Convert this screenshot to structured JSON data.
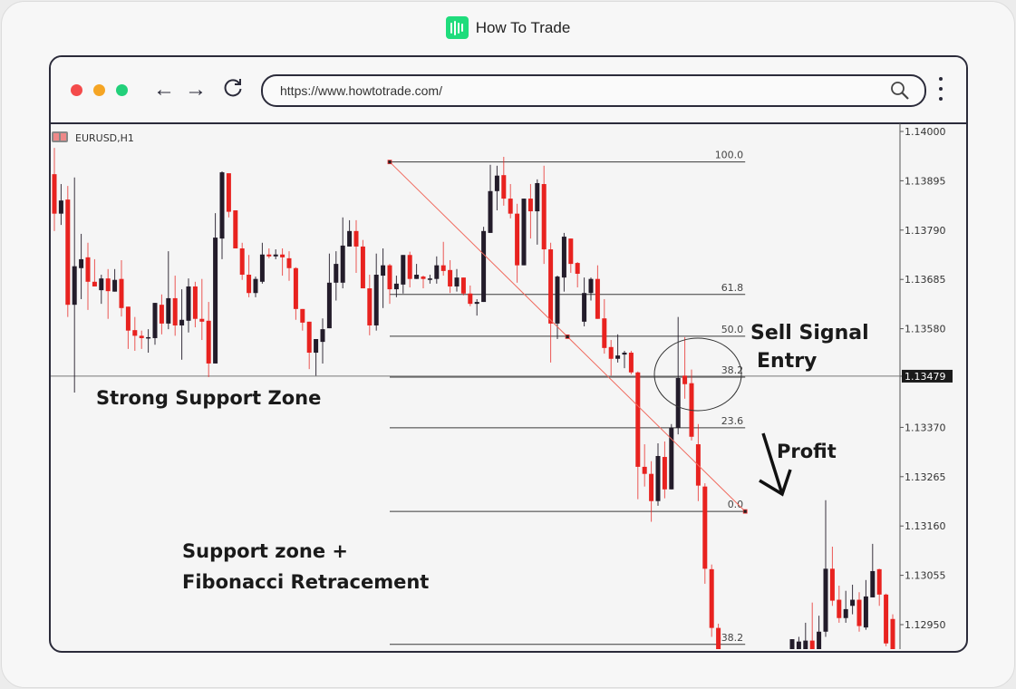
{
  "brand": {
    "name": "How To Trade",
    "logo_color": "#1fdc7c"
  },
  "browser": {
    "url": "https://www.howtotrade.com/",
    "window_dots": [
      "#f44b4b",
      "#f5a524",
      "#22d07a"
    ],
    "icons": [
      "back-arrow-icon",
      "forward-arrow-icon",
      "reload-icon",
      "search-icon",
      "kebab-menu-icon"
    ]
  },
  "chart_data": {
    "type": "candlestick",
    "symbol_label": "EURUSD,H1",
    "ylim": [
      1.1285,
      1.1402
    ],
    "y_ticks": [
      "1.14000",
      "1.13895",
      "1.13790",
      "1.13685",
      "1.13580",
      "1.13479",
      "1.13370",
      "1.13265",
      "1.13160",
      "1.13055",
      "1.12950"
    ],
    "current_price_label": "1.13479",
    "current_price": 1.13479,
    "colors": {
      "bearish": "#e8221f",
      "bullish": "#231c2a",
      "trendline": "#f06a5e",
      "level": "#3a3a3a"
    },
    "candle_fields": [
      "open",
      "high",
      "low",
      "close"
    ],
    "candles": [
      [
        1.13909,
        1.13965,
        1.13788,
        1.13825
      ],
      [
        1.13825,
        1.13888,
        1.13801,
        1.13853
      ],
      [
        1.13855,
        1.13884,
        1.13605,
        1.13631
      ],
      [
        1.13631,
        1.13902,
        1.13444,
        1.13713
      ],
      [
        1.13709,
        1.13782,
        1.13643,
        1.13728
      ],
      [
        1.13732,
        1.13763,
        1.1362,
        1.1368
      ],
      [
        1.1368,
        1.13728,
        1.1367,
        1.1367
      ],
      [
        1.13662,
        1.13695,
        1.13633,
        1.13687
      ],
      [
        1.13687,
        1.13707,
        1.13601,
        1.1366
      ],
      [
        1.13659,
        1.13707,
        1.13659,
        1.13684
      ],
      [
        1.13686,
        1.13726,
        1.13606,
        1.13624
      ],
      [
        1.13627,
        1.13627,
        1.13537,
        1.13576
      ],
      [
        1.13577,
        1.13605,
        1.13533,
        1.13565
      ],
      [
        1.13565,
        1.13576,
        1.13537,
        1.1356
      ],
      [
        1.1356,
        1.13579,
        1.13529,
        1.13562
      ],
      [
        1.1356,
        1.13635,
        1.13546,
        1.13635
      ],
      [
        1.13631,
        1.13653,
        1.13568,
        1.13591
      ],
      [
        1.13591,
        1.13745,
        1.13579,
        1.13645
      ],
      [
        1.13645,
        1.13693,
        1.13565,
        1.13587
      ],
      [
        1.13587,
        1.13664,
        1.13514,
        1.13599
      ],
      [
        1.13597,
        1.13687,
        1.13572,
        1.1367
      ],
      [
        1.1367,
        1.1368,
        1.13583,
        1.13601
      ],
      [
        1.13601,
        1.13686,
        1.13556,
        1.13595
      ],
      [
        1.13597,
        1.13637,
        1.13477,
        1.13506
      ],
      [
        1.13506,
        1.13826,
        1.13506,
        1.13774
      ],
      [
        1.13772,
        1.13915,
        1.13728,
        1.13913
      ],
      [
        1.13911,
        1.13911,
        1.13817,
        1.13829
      ],
      [
        1.13832,
        1.13832,
        1.13751,
        1.13751
      ],
      [
        1.13751,
        1.13763,
        1.13684,
        1.13695
      ],
      [
        1.13695,
        1.13737,
        1.13647,
        1.13656
      ],
      [
        1.13656,
        1.13691,
        1.13647,
        1.13686
      ],
      [
        1.1368,
        1.13763,
        1.13676,
        1.13738
      ],
      [
        1.13738,
        1.13751,
        1.1373,
        1.13734
      ],
      [
        1.13734,
        1.13749,
        1.13728,
        1.13738
      ],
      [
        1.13738,
        1.13751,
        1.13693,
        1.13732
      ],
      [
        1.1373,
        1.13745,
        1.13682,
        1.13709
      ],
      [
        1.13709,
        1.13711,
        1.13599,
        1.13622
      ],
      [
        1.13622,
        1.13622,
        1.13576,
        1.13593
      ],
      [
        1.13595,
        1.13595,
        1.13494,
        1.13529
      ],
      [
        1.13529,
        1.13558,
        1.1348,
        1.13558
      ],
      [
        1.13552,
        1.13602,
        1.13506,
        1.13579
      ],
      [
        1.13581,
        1.1374,
        1.13581,
        1.13678
      ],
      [
        1.13678,
        1.13745,
        1.1364,
        1.13718
      ],
      [
        1.13678,
        1.13817,
        1.13666,
        1.13757
      ],
      [
        1.13755,
        1.13811,
        1.13755,
        1.13788
      ],
      [
        1.13788,
        1.13811,
        1.13699,
        1.13755
      ],
      [
        1.13755,
        1.13769,
        1.13666,
        1.13666
      ],
      [
        1.13666,
        1.13695,
        1.13566,
        1.13587
      ],
      [
        1.13587,
        1.1374,
        1.13576,
        1.13695
      ],
      [
        1.13693,
        1.13751,
        1.13624,
        1.13715
      ],
      [
        1.13715,
        1.13718,
        1.13633,
        1.13664
      ],
      [
        1.13664,
        1.13693,
        1.13647,
        1.13676
      ],
      [
        1.13674,
        1.13737,
        1.13655,
        1.13737
      ],
      [
        1.13737,
        1.13744,
        1.13668,
        1.13686
      ],
      [
        1.13686,
        1.13718,
        1.13686,
        1.13695
      ],
      [
        1.13691,
        1.13693,
        1.13666,
        1.13686
      ],
      [
        1.13684,
        1.13695,
        1.13676,
        1.13687
      ],
      [
        1.13686,
        1.13734,
        1.13676,
        1.13715
      ],
      [
        1.13715,
        1.13765,
        1.13693,
        1.13703
      ],
      [
        1.13705,
        1.13726,
        1.13656,
        1.1367
      ],
      [
        1.1367,
        1.13707,
        1.13659,
        1.13689
      ],
      [
        1.13689,
        1.13689,
        1.13651,
        1.13655
      ],
      [
        1.13655,
        1.13672,
        1.13628,
        1.13633
      ],
      [
        1.13633,
        1.13643,
        1.13608,
        1.13637
      ],
      [
        1.13637,
        1.13797,
        1.13637,
        1.13788
      ],
      [
        1.13784,
        1.13929,
        1.13784,
        1.13873
      ],
      [
        1.13873,
        1.13927,
        1.13832,
        1.13906
      ],
      [
        1.13907,
        1.13946,
        1.13842,
        1.13857
      ],
      [
        1.13857,
        1.13888,
        1.13815,
        1.13825
      ],
      [
        1.13825,
        1.13846,
        1.13678,
        1.13715
      ],
      [
        1.13715,
        1.13857,
        1.13715,
        1.13857
      ],
      [
        1.13857,
        1.13888,
        1.13772,
        1.1383
      ],
      [
        1.1383,
        1.13898,
        1.13759,
        1.1389
      ],
      [
        1.13888,
        1.13927,
        1.13718,
        1.13749
      ],
      [
        1.13749,
        1.13763,
        1.13508,
        1.13591
      ],
      [
        1.13591,
        1.13693,
        1.13558,
        1.13691
      ],
      [
        1.13689,
        1.13784,
        1.13659,
        1.13776
      ],
      [
        1.13772,
        1.13772,
        1.13699,
        1.13718
      ],
      [
        1.1372,
        1.13722,
        1.13668,
        1.13697
      ],
      [
        1.13595,
        1.13689,
        1.13585,
        1.13656
      ],
      [
        1.13656,
        1.13689,
        1.1364,
        1.13686
      ],
      [
        1.13686,
        1.13715,
        1.13601,
        1.13601
      ],
      [
        1.13602,
        1.13643,
        1.13527,
        1.13539
      ],
      [
        1.13541,
        1.13556,
        1.1348,
        1.13516
      ],
      [
        1.13516,
        1.13568,
        1.13508,
        1.13523
      ],
      [
        1.13525,
        1.13533,
        1.13496,
        1.13529
      ],
      [
        1.13529,
        1.13533,
        1.13483,
        1.13487
      ],
      [
        1.13487,
        1.13489,
        1.13217,
        1.13286
      ],
      [
        1.13286,
        1.13334,
        1.13244,
        1.13271
      ],
      [
        1.13271,
        1.13298,
        1.13169,
        1.13213
      ],
      [
        1.13213,
        1.13336,
        1.13203,
        1.13309
      ],
      [
        1.13307,
        1.1334,
        1.13219,
        1.13238
      ],
      [
        1.13238,
        1.13377,
        1.13238,
        1.13369
      ],
      [
        1.13369,
        1.13605,
        1.13355,
        1.13475
      ],
      [
        1.1348,
        1.13562,
        1.13431,
        1.13462
      ],
      [
        1.13464,
        1.13493,
        1.13342,
        1.1335
      ],
      [
        1.13334,
        1.13377,
        1.13213,
        1.13246
      ],
      [
        1.13244,
        1.13251,
        1.13037,
        1.13069
      ],
      [
        1.13068,
        1.13078,
        1.12924,
        1.12943
      ],
      [
        1.12943,
        1.12952,
        1.12852,
        1.12871
      ],
      null,
      null,
      null,
      null,
      null,
      null,
      null,
      null,
      null,
      null,
      [
        1.12881,
        1.12919,
        1.1287,
        1.12919
      ],
      [
        1.1287,
        1.12924,
        1.1286,
        1.12914
      ],
      [
        1.1288,
        1.12954,
        1.1286,
        1.12916
      ],
      [
        1.12916,
        1.12997,
        1.1285,
        1.1287
      ],
      [
        1.12881,
        1.12969,
        1.1287,
        1.12935
      ],
      [
        1.12935,
        1.13215,
        1.12924,
        1.13069
      ],
      [
        1.13069,
        1.13116,
        1.1299,
        1.13001
      ],
      [
        1.13003,
        1.13033,
        1.12954,
        1.12964
      ],
      [
        1.12964,
        1.13022,
        1.12954,
        1.12983
      ],
      [
        1.1299,
        1.13035,
        1.12972,
        1.13003
      ],
      [
        1.13003,
        1.13019,
        1.12935,
        1.12947
      ],
      [
        1.12944,
        1.13045,
        1.12939,
        1.1301
      ],
      [
        1.13008,
        1.13122,
        1.13008,
        1.13064
      ],
      [
        1.13068,
        1.13069,
        1.1299,
        1.13014
      ],
      [
        1.13014,
        1.13016,
        1.12904,
        1.1291
      ],
      [
        1.12962,
        1.12972,
        1.12862,
        1.12871
      ]
    ],
    "fibonacci": {
      "start_index": 50,
      "end_index": 103,
      "high": 1.13935,
      "low": 1.13191,
      "levels": [
        {
          "label": "100.0",
          "price": 1.13935
        },
        {
          "label": "61.8",
          "price": 1.13653
        },
        {
          "label": "50.0",
          "price": 1.13564
        },
        {
          "label": "38.2",
          "price": 1.13477
        },
        {
          "label": "23.6",
          "price": 1.13369
        },
        {
          "label": "0.0",
          "price": 1.13191
        },
        {
          "label": "-38.2",
          "price": 1.12908
        }
      ]
    },
    "annotations": {
      "strong_support": "Strong Support Zone",
      "sell_signal_line1": "Sell Signal",
      "sell_signal_line2": "Entry",
      "profit": "Profit",
      "support_fib_line1": "Support zone +",
      "support_fib_line2": "Fibonacci Retracement"
    }
  }
}
